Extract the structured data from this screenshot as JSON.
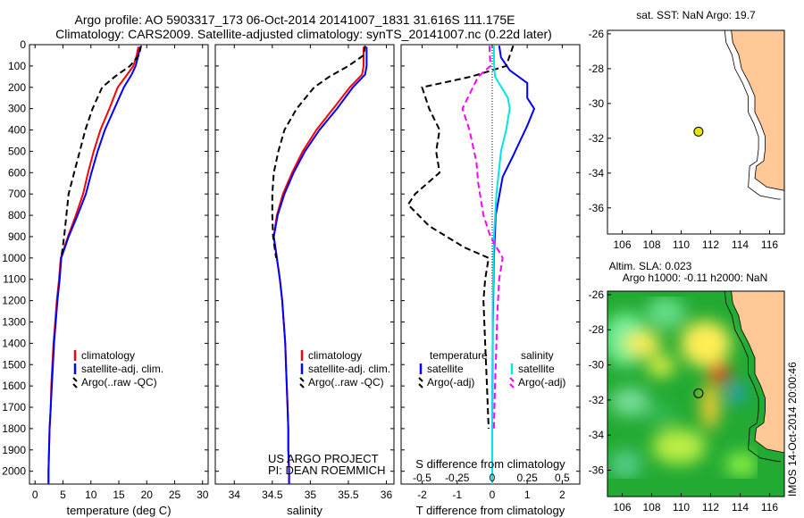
{
  "header": {
    "line1": "Argo profile: AO 5903317_173 06-Oct-2014 20141007_1831 31.616S 111.175E",
    "line2": "Climatology: CARS2009. Satellite-adjusted climatology: synTS_20141007.nc (0.22d later)"
  },
  "colors": {
    "climatology": "#ff0000",
    "satellite": "#0000ff",
    "argo": "#000000",
    "sal_satellite": "#00e5e5",
    "sal_argo": "#ff00ff",
    "land": "#ffc896",
    "marker": "#e6e600"
  },
  "chart_data": [
    {
      "type": "line",
      "name": "temperature-profile",
      "xlabel": "temperature (deg C)",
      "ylabel": "",
      "xlim": [
        -1,
        31
      ],
      "ylim": [
        0,
        2060
      ],
      "y_inverted": true,
      "xticks": [
        0,
        5,
        10,
        15,
        20,
        25,
        30
      ],
      "yticks": [
        0,
        100,
        200,
        300,
        400,
        500,
        600,
        700,
        800,
        900,
        1000,
        1100,
        1200,
        1300,
        1400,
        1500,
        1600,
        1700,
        1800,
        1900,
        2000
      ],
      "legend": {
        "position": "lower-left",
        "entries": [
          "climatology",
          "satellite-adj. clim.",
          "Argo(..raw -QC)"
        ]
      },
      "series": [
        {
          "name": "climatology",
          "color_key": "climatology",
          "points": [
            [
              18.5,
              10
            ],
            [
              18.2,
              50
            ],
            [
              17.6,
              100
            ],
            [
              16.5,
              140
            ],
            [
              14.8,
              200
            ],
            [
              13.3,
              300
            ],
            [
              11.7,
              400
            ],
            [
              10.5,
              500
            ],
            [
              9.5,
              600
            ],
            [
              8.6,
              700
            ],
            [
              7.3,
              800
            ],
            [
              5.9,
              900
            ],
            [
              4.6,
              1000
            ],
            [
              4.3,
              1100
            ],
            [
              3.9,
              1200
            ],
            [
              3.6,
              1300
            ],
            [
              3.3,
              1400
            ],
            [
              3.1,
              1500
            ],
            [
              2.9,
              1600
            ],
            [
              2.8,
              1700
            ],
            [
              2.6,
              1800
            ],
            [
              2.5,
              1900
            ],
            [
              2.4,
              2000
            ],
            [
              2.4,
              2060
            ]
          ]
        },
        {
          "name": "satellite-adj. clim.",
          "color_key": "satellite",
          "points": [
            [
              18.8,
              10
            ],
            [
              18.5,
              50
            ],
            [
              18.0,
              100
            ],
            [
              17.3,
              140
            ],
            [
              15.9,
              200
            ],
            [
              14.2,
              300
            ],
            [
              12.5,
              400
            ],
            [
              11.2,
              500
            ],
            [
              10.1,
              600
            ],
            [
              9.1,
              700
            ],
            [
              7.6,
              800
            ],
            [
              6.0,
              900
            ],
            [
              4.7,
              1000
            ],
            [
              4.4,
              1100
            ],
            [
              4.0,
              1200
            ],
            [
              3.7,
              1300
            ],
            [
              3.4,
              1400
            ],
            [
              3.2,
              1500
            ],
            [
              3.0,
              1600
            ],
            [
              2.8,
              1700
            ],
            [
              2.6,
              1800
            ],
            [
              2.5,
              1900
            ],
            [
              2.4,
              2000
            ],
            [
              2.4,
              2060
            ]
          ]
        },
        {
          "name": "Argo(..raw -QC)",
          "color_key": "argo",
          "points": [
            [
              19.0,
              5
            ],
            [
              18.6,
              50
            ],
            [
              17.0,
              100
            ],
            [
              14.3,
              150
            ],
            [
              12.0,
              200
            ],
            [
              10.3,
              300
            ],
            [
              9.0,
              400
            ],
            [
              8.0,
              500
            ],
            [
              7.0,
              600
            ],
            [
              6.0,
              700
            ],
            [
              5.6,
              800
            ],
            [
              5.2,
              900
            ],
            [
              4.7,
              1000
            ]
          ]
        }
      ]
    },
    {
      "type": "line",
      "name": "salinity-profile",
      "xlabel": "salinity",
      "ylabel": "",
      "xlim": [
        33.75,
        36.1
      ],
      "ylim": [
        0,
        2060
      ],
      "y_inverted": true,
      "xticks": [
        34,
        34.5,
        35,
        35.5,
        36
      ],
      "legend": {
        "position": "lower-right",
        "entries": [
          "climatology",
          "satellite-adj. clim.",
          "Argo(..raw -QC)"
        ]
      },
      "annotation": [
        "US ARGO PROJECT",
        "PI: DEAN ROEMMICH"
      ],
      "series": [
        {
          "name": "climatology",
          "color_key": "climatology",
          "points": [
            [
              35.7,
              10
            ],
            [
              35.7,
              50
            ],
            [
              35.7,
              100
            ],
            [
              35.68,
              140
            ],
            [
              35.52,
              200
            ],
            [
              35.3,
              300
            ],
            [
              35.08,
              400
            ],
            [
              34.9,
              500
            ],
            [
              34.76,
              600
            ],
            [
              34.64,
              700
            ],
            [
              34.56,
              800
            ],
            [
              34.52,
              900
            ],
            [
              34.56,
              1000
            ],
            [
              34.6,
              1100
            ],
            [
              34.63,
              1200
            ],
            [
              34.65,
              1300
            ],
            [
              34.67,
              1400
            ],
            [
              34.68,
              1500
            ],
            [
              34.69,
              1600
            ],
            [
              34.7,
              1700
            ],
            [
              34.71,
              1800
            ],
            [
              34.71,
              1900
            ],
            [
              34.72,
              2000
            ],
            [
              34.72,
              2060
            ]
          ]
        },
        {
          "name": "satellite-adj. clim.",
          "color_key": "satellite",
          "points": [
            [
              35.74,
              10
            ],
            [
              35.74,
              50
            ],
            [
              35.74,
              100
            ],
            [
              35.72,
              140
            ],
            [
              35.56,
              200
            ],
            [
              35.35,
              300
            ],
            [
              35.12,
              400
            ],
            [
              34.93,
              500
            ],
            [
              34.78,
              600
            ],
            [
              34.66,
              700
            ],
            [
              34.57,
              800
            ],
            [
              34.52,
              900
            ],
            [
              34.56,
              1000
            ],
            [
              34.6,
              1100
            ],
            [
              34.63,
              1200
            ],
            [
              34.65,
              1300
            ],
            [
              34.67,
              1400
            ],
            [
              34.68,
              1500
            ],
            [
              34.69,
              1600
            ],
            [
              34.7,
              1700
            ],
            [
              34.71,
              1800
            ],
            [
              34.71,
              1900
            ],
            [
              34.72,
              2000
            ],
            [
              34.72,
              2060
            ]
          ]
        },
        {
          "name": "Argo(..raw -QC)",
          "color_key": "argo",
          "points": [
            [
              35.72,
              5
            ],
            [
              35.7,
              50
            ],
            [
              35.5,
              100
            ],
            [
              35.25,
              150
            ],
            [
              35.05,
              200
            ],
            [
              34.82,
              300
            ],
            [
              34.66,
              400
            ],
            [
              34.58,
              500
            ],
            [
              34.52,
              600
            ],
            [
              34.5,
              700
            ],
            [
              34.5,
              800
            ],
            [
              34.51,
              900
            ],
            [
              34.55,
              1000
            ]
          ]
        }
      ]
    },
    {
      "type": "line",
      "name": "difference-profile",
      "xlabel": "T difference from climatology",
      "secondary_xlabel": "S difference from climatology",
      "xlim": [
        -2.6,
        2.5
      ],
      "ylim": [
        0,
        2060
      ],
      "y_inverted": true,
      "xticks": [
        -2,
        -1,
        0,
        1,
        2
      ],
      "secondary_xticks": [
        -0.5,
        -0.25,
        0,
        0.25,
        0.5
      ],
      "legend": {
        "position": "lower",
        "temperature_title": "temperature",
        "salinity_title": "salinity",
        "temperature_entries": [
          "satellite",
          "Argo(-adj)"
        ],
        "salinity_entries": [
          "satellite",
          "Argo(-adj)"
        ]
      },
      "series": [
        {
          "name": "temperature satellite",
          "color_key": "satellite",
          "points": [
            [
              0.2,
              5
            ],
            [
              0.25,
              60
            ],
            [
              0.5,
              120
            ],
            [
              1.0,
              180
            ],
            [
              1.0,
              250
            ],
            [
              1.2,
              300
            ],
            [
              1.0,
              380
            ],
            [
              0.8,
              450
            ],
            [
              0.6,
              520
            ],
            [
              0.3,
              620
            ],
            [
              0.1,
              800
            ],
            [
              0.05,
              1000
            ],
            [
              0.02,
              1300
            ],
            [
              0.0,
              1800
            ],
            [
              0.0,
              2060
            ]
          ]
        },
        {
          "name": "temperature Argo(-adj)",
          "color_key": "argo",
          "points": [
            [
              0.6,
              5
            ],
            [
              0.4,
              100
            ],
            [
              -0.6,
              150
            ],
            [
              -2.0,
              200
            ],
            [
              -1.8,
              300
            ],
            [
              -1.5,
              400
            ],
            [
              -1.6,
              500
            ],
            [
              -1.5,
              600
            ],
            [
              -2.2,
              700
            ],
            [
              -2.4,
              750
            ],
            [
              -1.8,
              850
            ],
            [
              -0.8,
              950
            ],
            [
              -0.1,
              1000
            ],
            [
              -0.2,
              1100
            ],
            [
              -0.25,
              1200
            ],
            [
              -0.2,
              1400
            ],
            [
              -0.15,
              1600
            ],
            [
              -0.1,
              1800
            ]
          ]
        },
        {
          "name": "salinity satellite",
          "color_key": "sal_satellite",
          "points": [
            [
              0.05,
              5
            ],
            [
              0.05,
              80
            ],
            [
              0.08,
              150
            ],
            [
              0.45,
              250
            ],
            [
              0.5,
              300
            ],
            [
              0.4,
              400
            ],
            [
              0.25,
              500
            ],
            [
              0.12,
              700
            ],
            [
              0.05,
              900
            ],
            [
              0.02,
              1200
            ],
            [
              0.0,
              1700
            ],
            [
              0.0,
              2060
            ]
          ]
        },
        {
          "name": "salinity Argo(-adj)",
          "color_key": "sal_argo",
          "points": [
            [
              -0.08,
              5
            ],
            [
              -0.05,
              100
            ],
            [
              -0.4,
              150
            ],
            [
              -0.85,
              300
            ],
            [
              -0.65,
              400
            ],
            [
              -0.45,
              550
            ],
            [
              -0.4,
              650
            ],
            [
              -0.25,
              800
            ],
            [
              -0.05,
              900
            ],
            [
              0.3,
              1000
            ],
            [
              0.2,
              1100
            ],
            [
              0.15,
              1250
            ],
            [
              0.12,
              1400
            ],
            [
              0.08,
              1600
            ],
            [
              0.05,
              1800
            ]
          ]
        }
      ]
    },
    {
      "type": "scatter",
      "name": "location-map-sst",
      "title": "sat. SST: NaN Argo: 19.7",
      "xlim": [
        105,
        117
      ],
      "ylim": [
        -37.5,
        -25.8
      ],
      "xticks": [
        106,
        108,
        110,
        112,
        114,
        116
      ],
      "yticks": [
        -26,
        -28,
        -30,
        -32,
        -34,
        -36
      ],
      "marker": {
        "lon": 111.175,
        "lat": -31.616
      }
    },
    {
      "type": "heatmap",
      "name": "location-map-sla",
      "title_line1": "Altim. SLA: 0.023",
      "title_line2": "Argo h1000: -0.11 h2000: NaN",
      "xlim": [
        105,
        117
      ],
      "ylim": [
        -37.5,
        -25.8
      ],
      "xticks": [
        106,
        108,
        110,
        112,
        114,
        116
      ],
      "yticks": [
        -26,
        -28,
        -30,
        -32,
        -34,
        -36
      ],
      "marker": {
        "lon": 111.175,
        "lat": -31.616
      },
      "side_label": "IMOS 14-Oct-2014 20:00:46"
    }
  ]
}
